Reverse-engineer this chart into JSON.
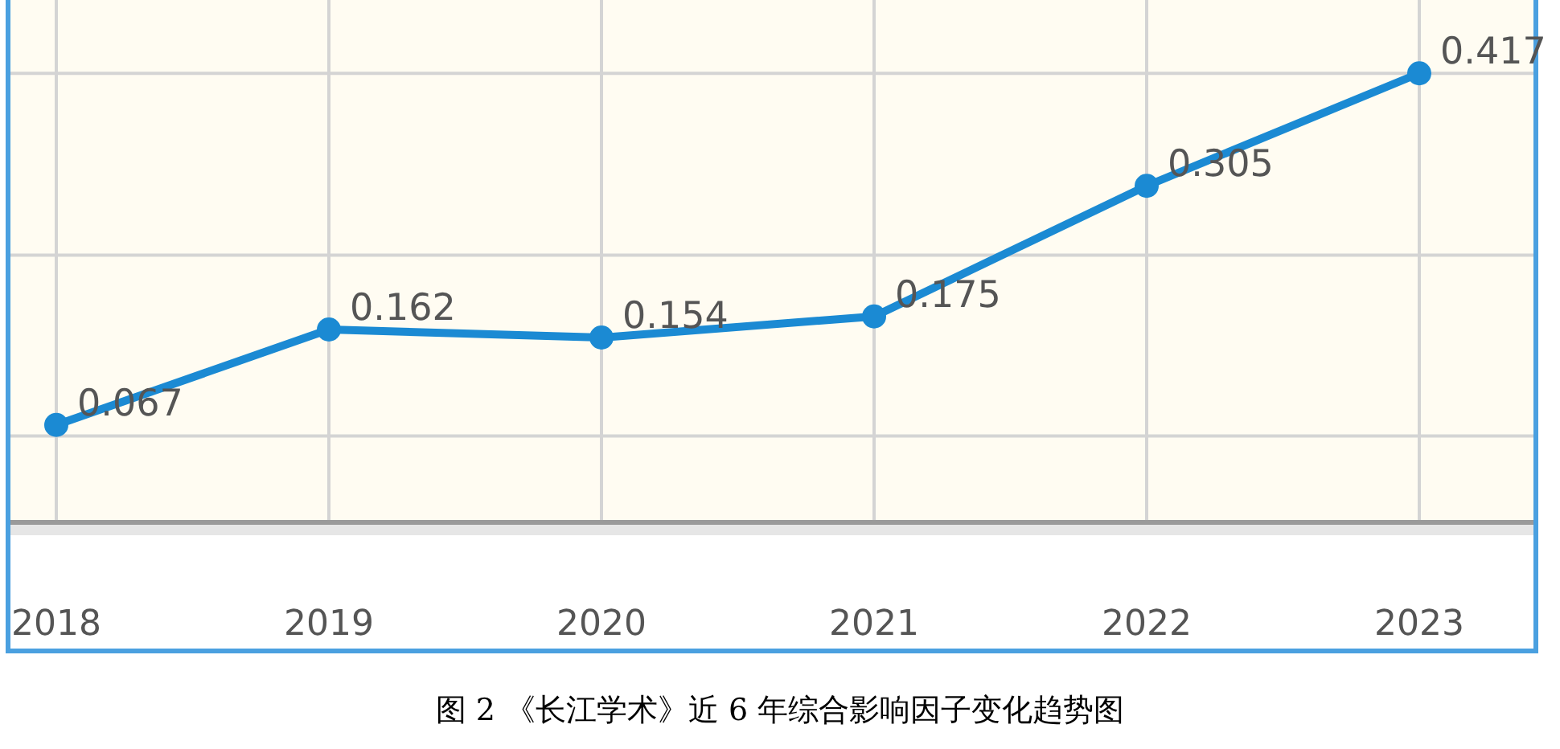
{
  "chart_data": {
    "type": "line",
    "title": "图 2 《长江学术》近 6 年综合影响因子变化趋势图",
    "categories": [
      "2018",
      "2019",
      "2020",
      "2021",
      "2022",
      "2023"
    ],
    "series": [
      {
        "color": "#1b8ad3",
        "values": [
          0.067,
          0.162,
          0.154,
          0.175,
          0.305,
          0.417
        ]
      }
    ],
    "ylim": [
      -0.03,
      0.49
    ],
    "yticks": [
      {
        "value": 0.056,
        "label": null
      },
      {
        "value": 0.236,
        "label": null
      },
      {
        "value": 0.417,
        "label": null
      }
    ],
    "tick_labels": "x",
    "grid": true,
    "marker": "circle",
    "line_style": "solid",
    "data_labels": true
  }
}
